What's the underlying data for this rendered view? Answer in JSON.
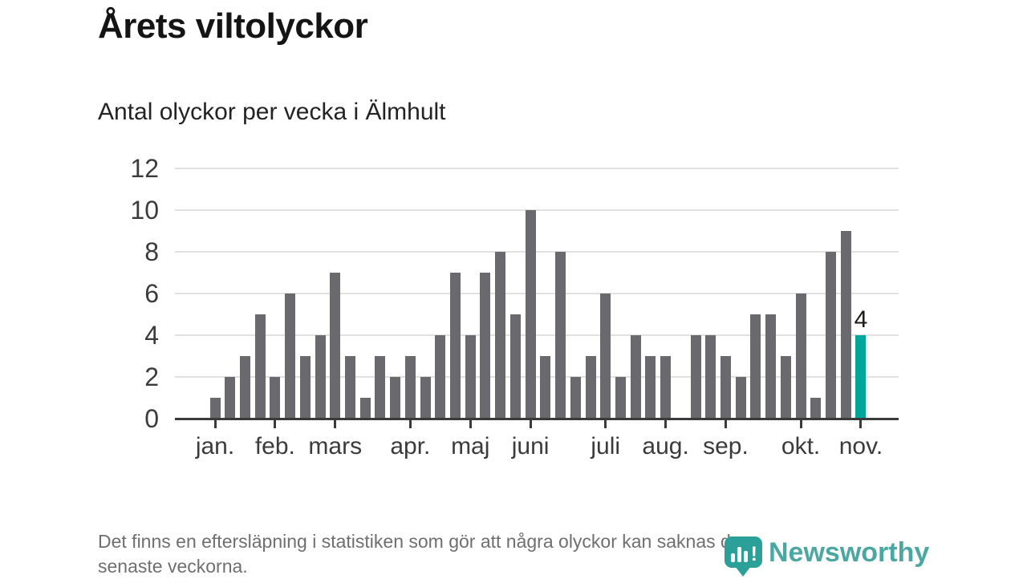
{
  "header": {
    "title": "Årets viltolyckor",
    "subtitle": "Antal olyckor per vecka i Älmhult"
  },
  "footer": {
    "note_lines": [
      "Det finns en eftersläpning i statistiken som gör att några olyckor kan saknas de",
      "senaste veckorna."
    ],
    "brand": "Newsworthy"
  },
  "chart_data": {
    "type": "bar",
    "title": "Årets viltolyckor",
    "subtitle": "Antal olyckor per vecka i Älmhult",
    "values": [
      1,
      2,
      3,
      5,
      2,
      6,
      3,
      4,
      7,
      3,
      1,
      3,
      2,
      3,
      2,
      4,
      7,
      4,
      7,
      8,
      5,
      10,
      3,
      8,
      2,
      3,
      6,
      2,
      4,
      3,
      3,
      0,
      4,
      4,
      3,
      2,
      5,
      5,
      3,
      6,
      1,
      8,
      9,
      4
    ],
    "highlight_index": 43,
    "highlight_label": "4",
    "y_ticks": [
      0,
      2,
      4,
      6,
      8,
      10,
      12
    ],
    "ylim": [
      0,
      12
    ],
    "grid": true,
    "x_tick_labels": [
      "jan.",
      "feb.",
      "mars",
      "apr.",
      "maj",
      "juni",
      "juli",
      "aug.",
      "sep.",
      "okt.",
      "nov."
    ],
    "x_tick_week_indexes": [
      0,
      4,
      8,
      13,
      17,
      21,
      26,
      30,
      34,
      39,
      43
    ],
    "colors": {
      "bar": "#6a6a6e",
      "highlight": "#00a59c",
      "grid": "#e1e1e1",
      "axis": "#3a3a3a",
      "axis_text": "#3b3b3b",
      "brand_teal": "#2aa098"
    }
  }
}
